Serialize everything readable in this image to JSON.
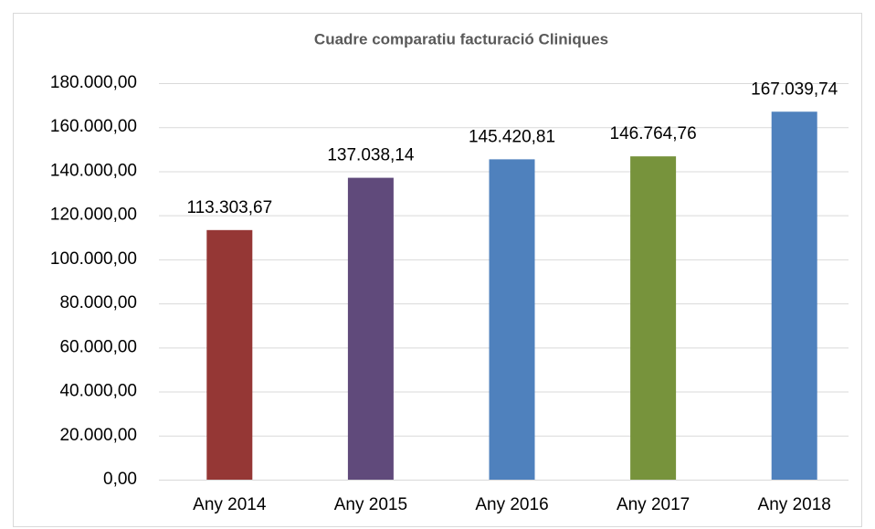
{
  "chart_data": {
    "type": "bar",
    "title": "Cuadre comparatiu facturació Cliniques",
    "categories": [
      "Any 2014",
      "Any 2015",
      "Any 2016",
      "Any 2017",
      "Any 2018"
    ],
    "values": [
      113303.67,
      137038.14,
      145420.81,
      146764.76,
      167039.74
    ],
    "value_labels": [
      "113.303,67",
      "137.038,14",
      "145.420,81",
      "146.764,76",
      "167.039,74"
    ],
    "colors": [
      "#953735",
      "#604a7b",
      "#4f81bd",
      "#77933c",
      "#4f81bd"
    ],
    "ylim": [
      0,
      180000
    ],
    "yticks": [
      {
        "value": 0,
        "label": "0,00"
      },
      {
        "value": 20000,
        "label": "20.000,00"
      },
      {
        "value": 40000,
        "label": "40.000,00"
      },
      {
        "value": 60000,
        "label": "60.000,00"
      },
      {
        "value": 80000,
        "label": "80.000,00"
      },
      {
        "value": 100000,
        "label": "100.000,00"
      },
      {
        "value": 120000,
        "label": "120.000,00"
      },
      {
        "value": 140000,
        "label": "140.000,00"
      },
      {
        "value": 160000,
        "label": "160.000,00"
      },
      {
        "value": 180000,
        "label": "180.000,00"
      }
    ],
    "grid": true
  }
}
